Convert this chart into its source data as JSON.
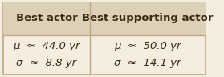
{
  "col1_header": "Best actor",
  "col2_header": "Best supporting actor",
  "col1_row1": "μ  ≈  44.0 yr",
  "col1_row2": "σ  ≈  8.8 yr",
  "col2_row1": "μ  ≈  50.0 yr",
  "col2_row2": "σ  ≈  14.1 yr",
  "header_bg": "#ddd0b8",
  "body_bg": "#f5ede0",
  "border_color": "#c0a882",
  "header_fontsize": 9.5,
  "cell_fontsize": 9.5,
  "text_color": "#3a2a10"
}
